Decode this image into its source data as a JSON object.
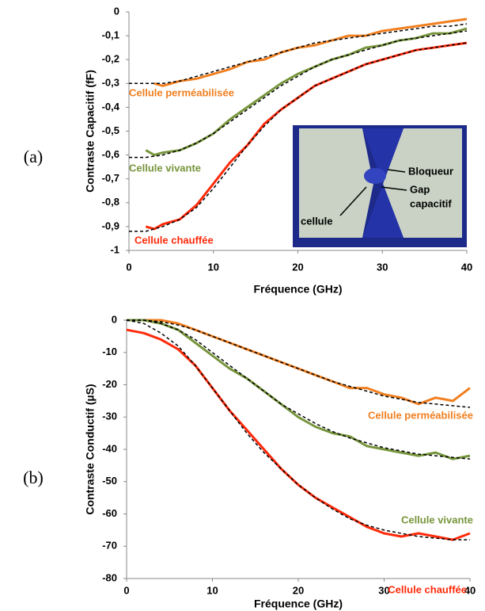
{
  "chart_data": [
    {
      "type": "line",
      "panel": "(a)",
      "xlabel": "Fréquence (GHz)",
      "ylabel": "Contraste Capacitif (fF)",
      "xlim": [
        0,
        40
      ],
      "xticks": [
        0,
        10,
        20,
        30,
        40
      ],
      "ylim": [
        -1,
        0
      ],
      "yticks": [
        0,
        {
          "value": -0.1,
          "label": "-0,1"
        },
        {
          "value": -0.2,
          "label": "-0,2"
        },
        {
          "value": -0.3,
          "label": "-0,3"
        },
        {
          "value": -0.4,
          "label": "-0,4"
        },
        {
          "value": -0.5,
          "label": "-0,5"
        },
        {
          "value": -0.6,
          "label": "-0,6"
        },
        {
          "value": -0.7,
          "label": "-0,7"
        },
        {
          "value": -0.8,
          "label": "-0,8"
        },
        {
          "value": -0.9,
          "label": "-0,9"
        },
        -1
      ],
      "series": [
        {
          "name": "Cellule perméabilisée",
          "color": "#f07f20",
          "x": [
            3,
            4,
            6,
            8,
            10,
            12,
            14,
            16,
            18,
            20,
            22,
            24,
            26,
            28,
            30,
            32,
            34,
            36,
            38,
            40
          ],
          "values": [
            -0.3,
            -0.31,
            -0.29,
            -0.28,
            -0.26,
            -0.24,
            -0.21,
            -0.2,
            -0.17,
            -0.15,
            -0.14,
            -0.12,
            -0.1,
            -0.1,
            -0.08,
            -0.07,
            -0.06,
            -0.05,
            -0.04,
            -0.03
          ]
        },
        {
          "name": "Cellule vivante",
          "color": "#77953c",
          "x": [
            2,
            3,
            4,
            6,
            8,
            10,
            12,
            14,
            16,
            18,
            20,
            22,
            24,
            26,
            28,
            30,
            32,
            34,
            36,
            38,
            40
          ],
          "values": [
            -0.58,
            -0.6,
            -0.59,
            -0.58,
            -0.55,
            -0.51,
            -0.45,
            -0.4,
            -0.35,
            -0.3,
            -0.26,
            -0.23,
            -0.2,
            -0.18,
            -0.15,
            -0.14,
            -0.12,
            -0.11,
            -0.09,
            -0.09,
            -0.07
          ]
        },
        {
          "name": "Cellule chauffée",
          "color": "#ff2a0a",
          "x": [
            2,
            3,
            4,
            6,
            8,
            10,
            12,
            14,
            16,
            18,
            20,
            22,
            24,
            26,
            28,
            30,
            32,
            34,
            36,
            38,
            40
          ],
          "values": [
            -0.9,
            -0.91,
            -0.89,
            -0.87,
            -0.81,
            -0.72,
            -0.63,
            -0.56,
            -0.47,
            -0.41,
            -0.36,
            -0.31,
            -0.28,
            -0.25,
            -0.22,
            -0.2,
            -0.18,
            -0.16,
            -0.15,
            -0.14,
            -0.13
          ]
        },
        {
          "color": "#000000",
          "dashed": true,
          "x": [
            0,
            2,
            4,
            6,
            8,
            10,
            12,
            14,
            16,
            18,
            20,
            22,
            24,
            26,
            28,
            30,
            32,
            34,
            36,
            38,
            40
          ],
          "values": [
            -0.3,
            -0.3,
            -0.3,
            -0.29,
            -0.27,
            -0.25,
            -0.23,
            -0.21,
            -0.19,
            -0.17,
            -0.15,
            -0.13,
            -0.12,
            -0.11,
            -0.1,
            -0.09,
            -0.08,
            -0.07,
            -0.06,
            -0.06,
            -0.05
          ]
        },
        {
          "color": "#000000",
          "dashed": true,
          "x": [
            0,
            2,
            4,
            6,
            8,
            10,
            12,
            14,
            16,
            18,
            20,
            22,
            24,
            26,
            28,
            30,
            32,
            34,
            36,
            38,
            40
          ],
          "values": [
            -0.61,
            -0.61,
            -0.6,
            -0.58,
            -0.55,
            -0.51,
            -0.46,
            -0.41,
            -0.36,
            -0.31,
            -0.27,
            -0.23,
            -0.2,
            -0.18,
            -0.16,
            -0.14,
            -0.12,
            -0.11,
            -0.1,
            -0.09,
            -0.08
          ]
        },
        {
          "color": "#000000",
          "dashed": true,
          "x": [
            0,
            2,
            4,
            6,
            8,
            10,
            12,
            14,
            16,
            18,
            20,
            22,
            24,
            26,
            28,
            30,
            32,
            34,
            36,
            38,
            40
          ],
          "values": [
            -0.92,
            -0.92,
            -0.9,
            -0.87,
            -0.82,
            -0.74,
            -0.65,
            -0.56,
            -0.48,
            -0.41,
            -0.36,
            -0.31,
            -0.28,
            -0.25,
            -0.22,
            -0.2,
            -0.18,
            -0.16,
            -0.15,
            -0.14,
            -0.13
          ]
        }
      ],
      "inset_annotations": [
        "Bloqueur",
        "Gap",
        "capacitif",
        "cellule"
      ]
    },
    {
      "type": "line",
      "panel": "(b)",
      "xlabel": "Fréquence (GHz)",
      "ylabel": "Contraste Conductif (µS)",
      "xlim": [
        0,
        40
      ],
      "xticks": [
        0,
        10,
        20,
        30,
        40
      ],
      "ylim": [
        -80,
        0
      ],
      "yticks": [
        0,
        -10,
        -20,
        -30,
        -40,
        -50,
        -60,
        -70,
        -80
      ],
      "series": [
        {
          "name": "Cellule perméabilisée",
          "color": "#f07f20",
          "x": [
            0,
            2,
            4,
            6,
            8,
            10,
            12,
            14,
            16,
            18,
            20,
            22,
            24,
            26,
            28,
            30,
            32,
            34,
            36,
            38,
            40
          ],
          "values": [
            0,
            0,
            0,
            -1,
            -3,
            -5,
            -7,
            -9,
            -11,
            -13,
            -15,
            -17,
            -19,
            -21,
            -21,
            -23,
            -24,
            -26,
            -24,
            -25,
            -21
          ]
        },
        {
          "name": "Cellule vivante",
          "color": "#77953c",
          "x": [
            0,
            2,
            4,
            6,
            8,
            10,
            12,
            14,
            16,
            18,
            20,
            22,
            24,
            26,
            28,
            30,
            32,
            34,
            36,
            38,
            40
          ],
          "values": [
            0,
            0,
            -1,
            -3,
            -7,
            -11,
            -15,
            -18,
            -22,
            -26,
            -30,
            -33,
            -35,
            -36,
            -39,
            -40,
            -41,
            -42,
            -41,
            -43,
            -42
          ]
        },
        {
          "name": "Cellule chauffée",
          "color": "#ff2a0a",
          "x": [
            0,
            2,
            4,
            6,
            8,
            10,
            12,
            14,
            16,
            18,
            20,
            22,
            24,
            26,
            28,
            30,
            32,
            34,
            36,
            38,
            40
          ],
          "values": [
            -3,
            -4,
            -6,
            -9,
            -14,
            -21,
            -28,
            -34,
            -40,
            -46,
            -51,
            -55,
            -58,
            -61,
            -64,
            -66,
            -67,
            -66,
            -67,
            -68,
            -66
          ]
        },
        {
          "color": "#000000",
          "dashed": true,
          "x": [
            0,
            2,
            4,
            6,
            8,
            10,
            12,
            14,
            16,
            18,
            20,
            22,
            24,
            26,
            28,
            30,
            32,
            34,
            36,
            38,
            40
          ],
          "values": [
            0,
            0,
            -0.5,
            -1.5,
            -3,
            -5,
            -7,
            -9,
            -11,
            -13,
            -15,
            -17,
            -19,
            -20.5,
            -22,
            -23.5,
            -24.5,
            -25.5,
            -26,
            -26.5,
            -27
          ]
        },
        {
          "color": "#000000",
          "dashed": true,
          "x": [
            0,
            2,
            4,
            6,
            8,
            10,
            12,
            14,
            16,
            18,
            20,
            22,
            24,
            26,
            28,
            30,
            32,
            34,
            36,
            38,
            40
          ],
          "values": [
            0,
            0,
            -1,
            -3,
            -6,
            -10,
            -14,
            -18,
            -22,
            -26,
            -29,
            -32,
            -34.5,
            -36.5,
            -38,
            -39.5,
            -40.5,
            -41.5,
            -42,
            -42.5,
            -43
          ]
        },
        {
          "color": "#000000",
          "dashed": true,
          "x": [
            0,
            2,
            4,
            6,
            8,
            10,
            12,
            14,
            16,
            18,
            20,
            22,
            24,
            26,
            28,
            30,
            32,
            34,
            36,
            38,
            40
          ],
          "values": [
            0,
            -1,
            -4,
            -8,
            -14,
            -21,
            -28,
            -35,
            -41,
            -46,
            -51,
            -55,
            -58.5,
            -61.5,
            -63.5,
            -65,
            -66,
            -67,
            -67.5,
            -68,
            -68
          ]
        }
      ]
    }
  ]
}
